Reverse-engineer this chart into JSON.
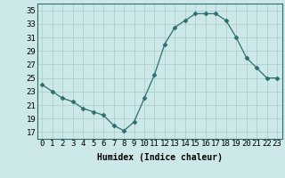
{
  "x": [
    0,
    1,
    2,
    3,
    4,
    5,
    6,
    7,
    8,
    9,
    10,
    11,
    12,
    13,
    14,
    15,
    16,
    17,
    18,
    19,
    20,
    21,
    22,
    23
  ],
  "y": [
    24,
    23,
    22,
    21.5,
    20.5,
    20,
    19.5,
    18,
    17.2,
    18.5,
    22,
    25.5,
    30,
    32.5,
    33.5,
    34.5,
    34.5,
    34.5,
    33.5,
    31,
    28,
    26.5,
    25,
    25
  ],
  "line_color": "#2d6e6e",
  "marker": "D",
  "marker_size": 2.5,
  "bg_color": "#cde8e8",
  "grid_color": "#aed0d0",
  "xlabel": "Humidex (Indice chaleur)",
  "xlim": [
    -0.5,
    23.5
  ],
  "ylim": [
    16,
    36
  ],
  "yticks": [
    17,
    19,
    21,
    23,
    25,
    27,
    29,
    31,
    33,
    35
  ],
  "xticks": [
    0,
    1,
    2,
    3,
    4,
    5,
    6,
    7,
    8,
    9,
    10,
    11,
    12,
    13,
    14,
    15,
    16,
    17,
    18,
    19,
    20,
    21,
    22,
    23
  ],
  "label_fontsize": 7,
  "tick_fontsize": 6.5
}
